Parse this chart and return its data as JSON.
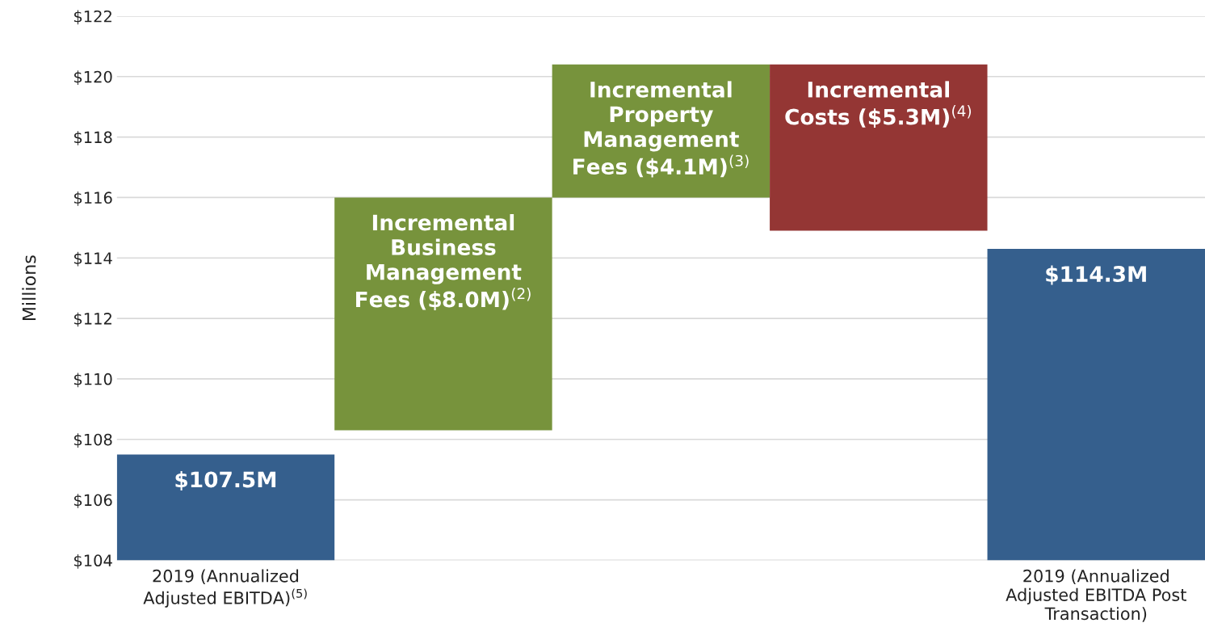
{
  "chart_data": {
    "type": "bar",
    "ylabel": "Millions",
    "categories": [
      "2019 (Annualized\nAdjusted EBITDA)$^{(5)}$",
      null,
      null,
      null,
      "2019 (Annualized\nAdjusted EBITDA Post\nTransaction)"
    ],
    "values": [
      3.5,
      7.7,
      4.4,
      5.5,
      10.3
    ],
    "base": [
      104,
      108.3,
      116,
      114.9,
      104
    ],
    "colors": [
      "#355f8d",
      "#77933c",
      "#77933c",
      "#943634",
      "#355f8d"
    ],
    "value_labels": [
      "$107.5M",
      "Incremental\nBusiness\nManagement\nFees ($8.0M)$^{(2)}$",
      "Incremental\nProperty\nManagement\nFees ($4.1M)$^{(3)}$",
      "Incremental\nCosts ($5.3M)$^{(4)}$",
      "$114.3M"
    ],
    "ylim": [
      104,
      122
    ],
    "yticks": [
      {
        "value": 104,
        "label": "$104"
      },
      {
        "value": 106,
        "label": "$106"
      },
      {
        "value": 108,
        "label": "$108"
      },
      {
        "value": 110,
        "label": "$110"
      },
      {
        "value": 112,
        "label": "$112"
      },
      {
        "value": 114,
        "label": "$114"
      },
      {
        "value": 116,
        "label": "$116"
      },
      {
        "value": 118,
        "label": "$118"
      },
      {
        "value": 120,
        "label": "$120"
      },
      {
        "value": 122,
        "label": "$122"
      }
    ],
    "grid": "y"
  }
}
